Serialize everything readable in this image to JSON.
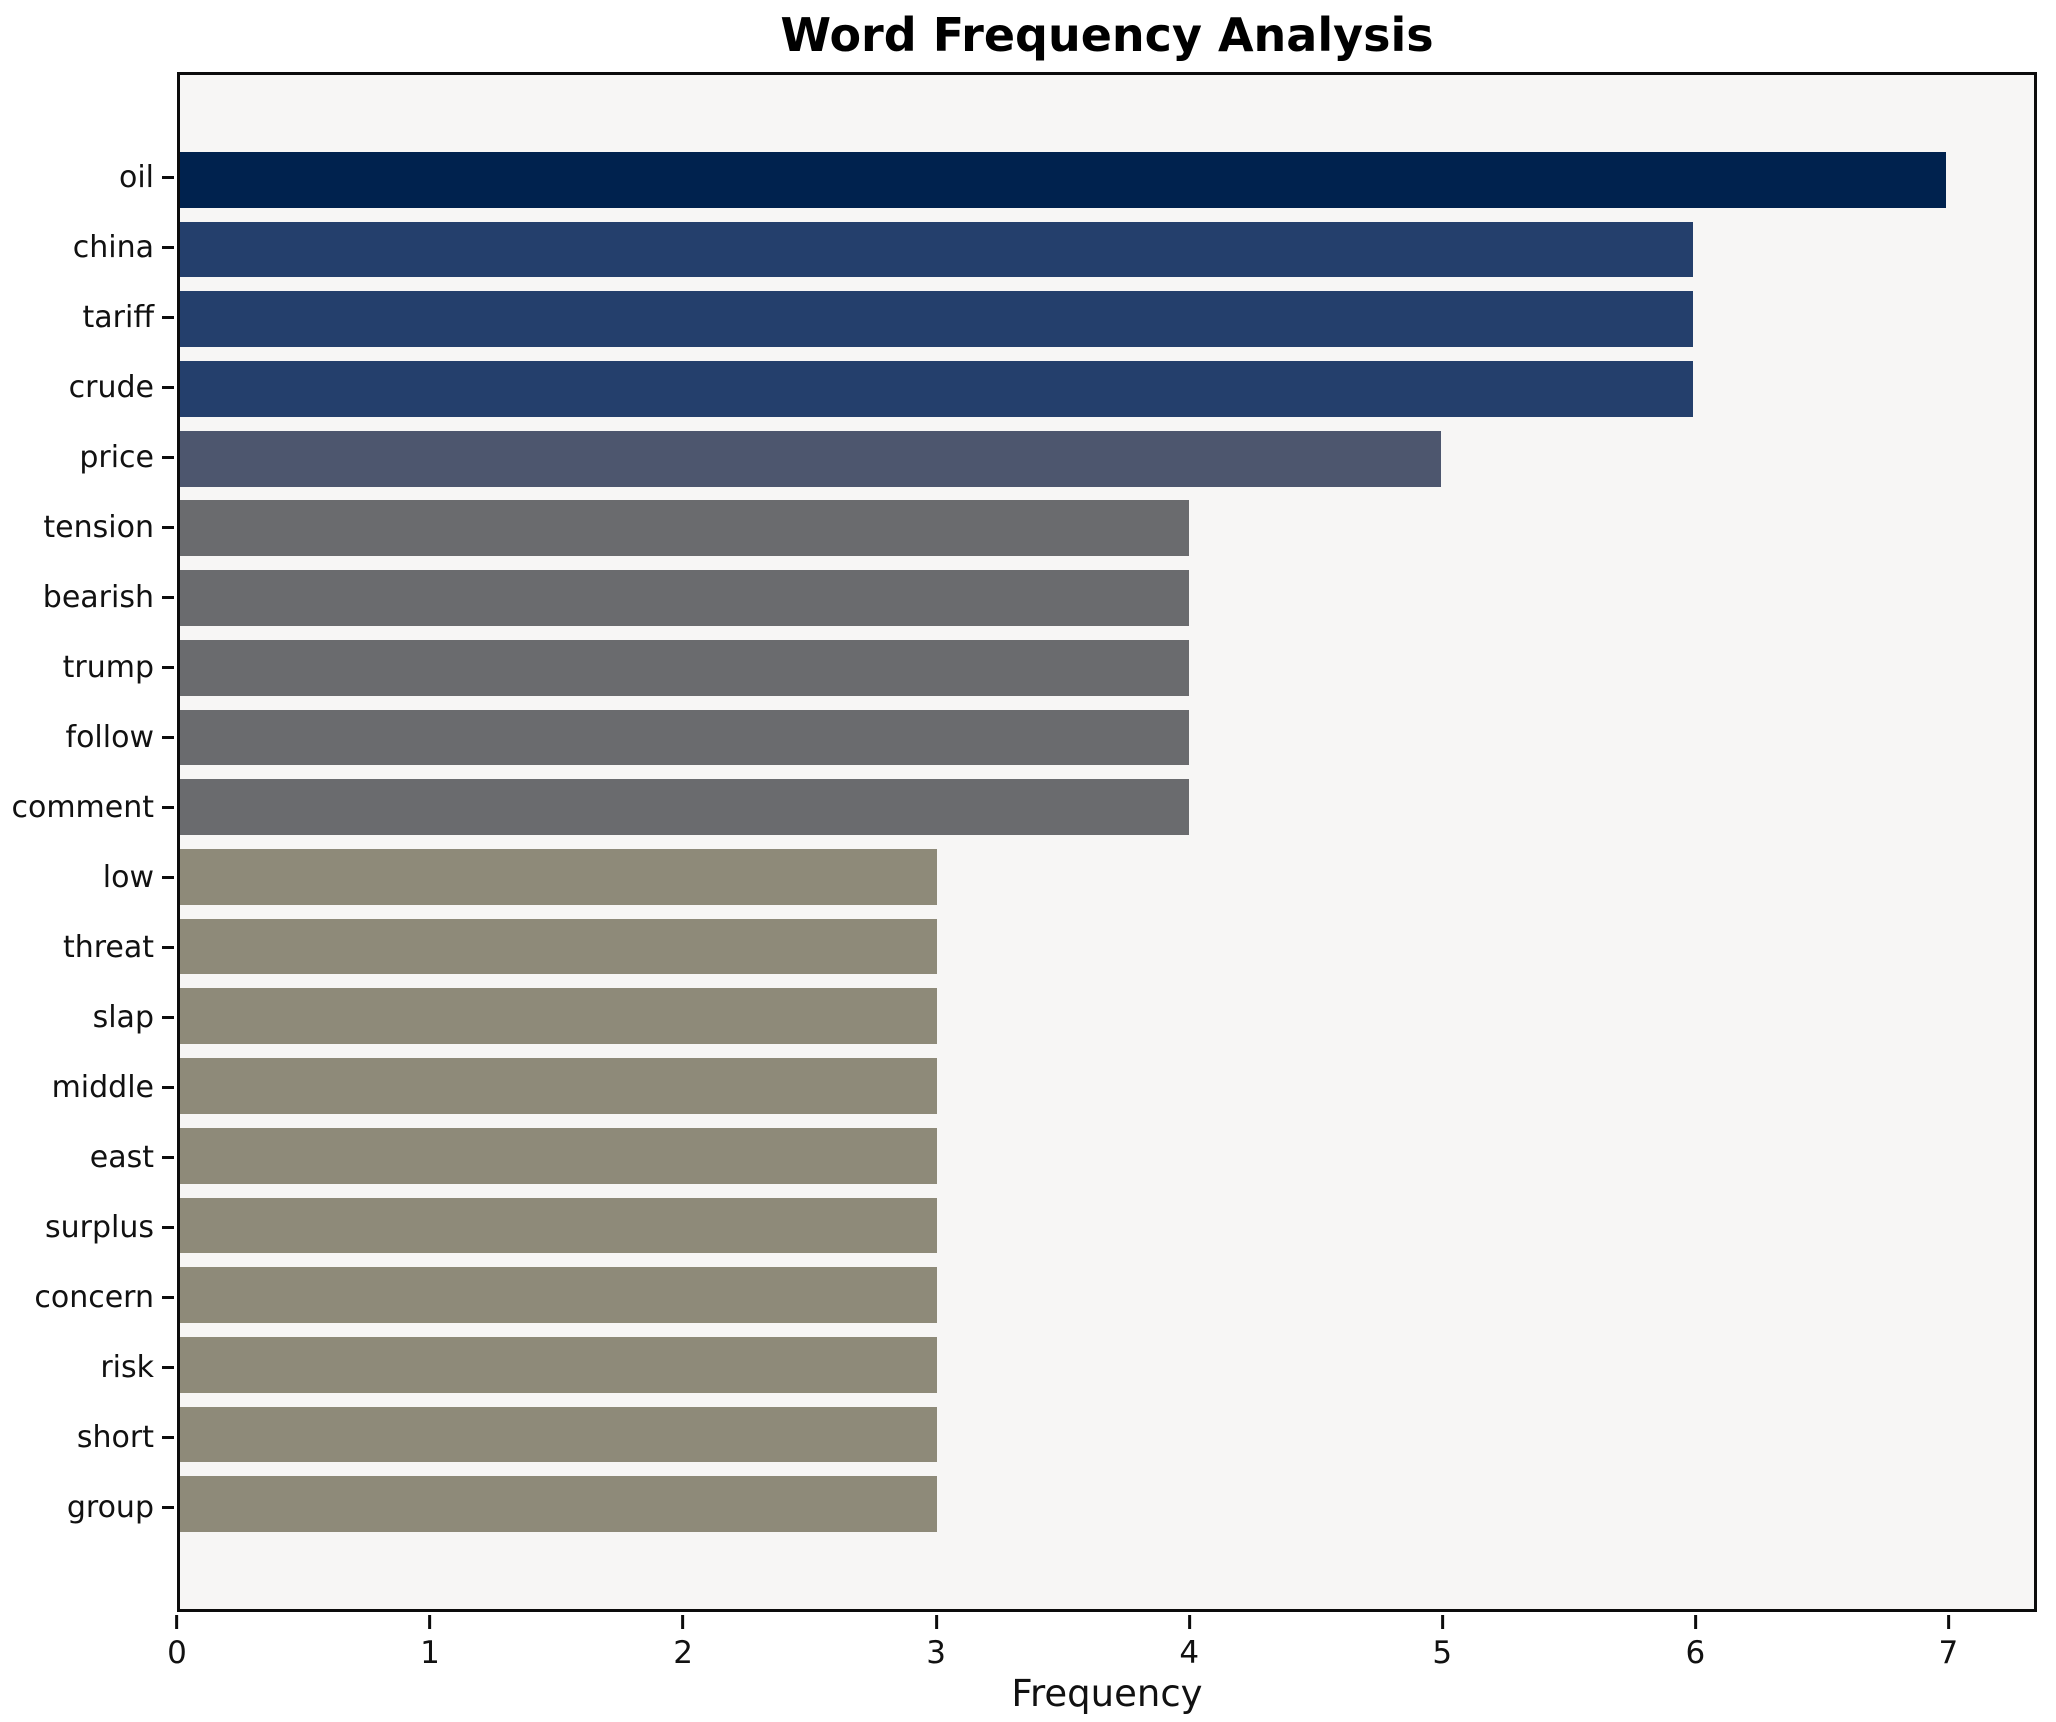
{
  "chart_data": {
    "type": "bar",
    "orientation": "horizontal",
    "title": "Word Frequency Analysis",
    "xlabel": "Frequency",
    "ylabel": "",
    "categories": [
      "oil",
      "china",
      "tariff",
      "crude",
      "price",
      "tension",
      "bearish",
      "trump",
      "follow",
      "comment",
      "low",
      "threat",
      "slap",
      "middle",
      "east",
      "surplus",
      "concern",
      "risk",
      "short",
      "group"
    ],
    "values": [
      7,
      6,
      6,
      6,
      5,
      4,
      4,
      4,
      4,
      4,
      3,
      3,
      3,
      3,
      3,
      3,
      3,
      3,
      3,
      3
    ],
    "bar_colors": [
      "#00224e",
      "#243f6c",
      "#243f6c",
      "#243f6c",
      "#4d566e",
      "#6a6b6e",
      "#6a6b6e",
      "#6a6b6e",
      "#6a6b6e",
      "#6a6b6e",
      "#8e8a79",
      "#8e8a79",
      "#8e8a79",
      "#8e8a79",
      "#8e8a79",
      "#8e8a79",
      "#8e8a79",
      "#8e8a79",
      "#8e8a79",
      "#8e8a79"
    ],
    "x_ticks": [
      0,
      1,
      2,
      3,
      4,
      5,
      6,
      7
    ],
    "xlim": [
      0,
      7.35
    ],
    "bar_height_fraction": 0.8,
    "grid": false,
    "legend": null,
    "plot_background": "#f7f6f5",
    "figure_background": "#ffffff",
    "spine_color": "#0c0c0c"
  }
}
